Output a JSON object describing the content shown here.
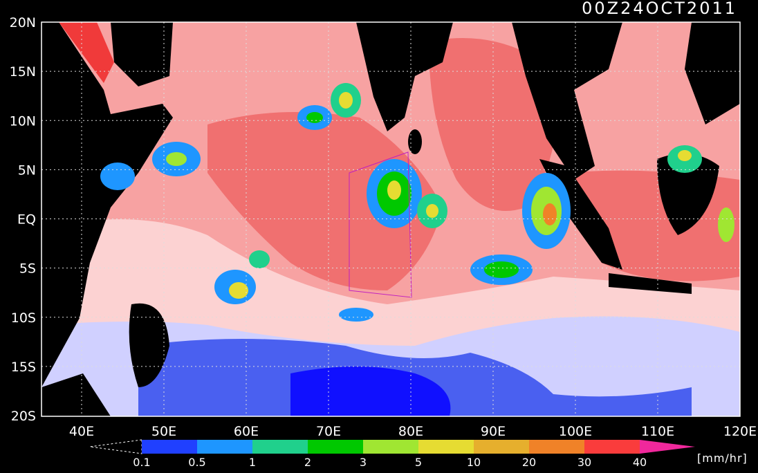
{
  "title": "00Z24OCT2011",
  "lat_labels": [
    "20N",
    "15N",
    "10N",
    "5N",
    "EQ",
    "5S",
    "10S",
    "15S",
    "20S"
  ],
  "lon_labels": [
    "40E",
    "50E",
    "60E",
    "70E",
    "80E",
    "90E",
    "100E",
    "110E",
    "120E"
  ],
  "colorbar": {
    "labels": [
      "0.1",
      "0.5",
      "1",
      "2",
      "3",
      "5",
      "10",
      "20",
      "30",
      "40"
    ],
    "colors": [
      "#2040ff",
      "#1e96ff",
      "#20d08c",
      "#00c800",
      "#a0e632",
      "#e6dc32",
      "#e6af2d",
      "#f08228",
      "#fa3c3c"
    ],
    "over_color": "#f0289c",
    "unit": "[mm/hr]"
  }
}
